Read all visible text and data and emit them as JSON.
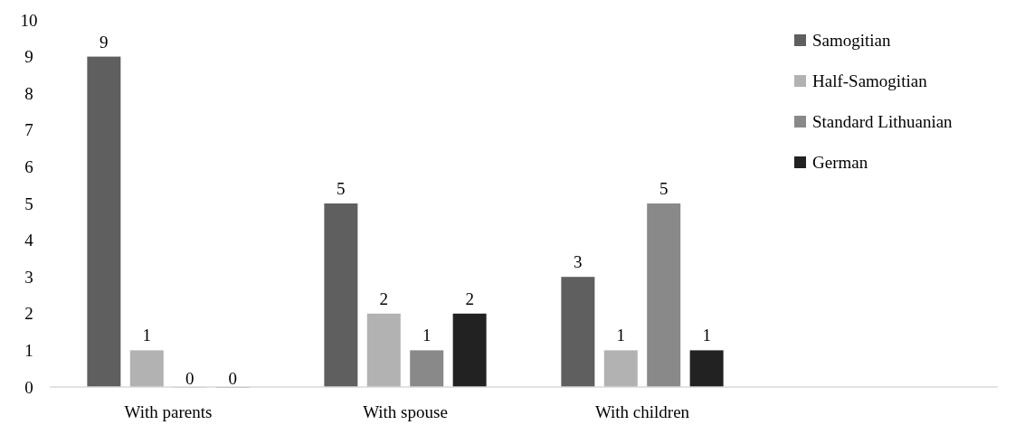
{
  "chart_data": {
    "type": "bar",
    "categories": [
      "With parents",
      "With spouse",
      "With children",
      null
    ],
    "series": [
      {
        "name": "Samogitian",
        "color": "#5f5f5f",
        "values": [
          9,
          5,
          3,
          null
        ]
      },
      {
        "name": "Half-Samogitian",
        "color": "#b2b2b2",
        "values": [
          1,
          2,
          1,
          null
        ]
      },
      {
        "name": "Standard Lithuanian",
        "color": "#898989",
        "values": [
          0,
          1,
          5,
          null
        ]
      },
      {
        "name": "German",
        "color": "#222222",
        "values": [
          0,
          2,
          1,
          null
        ]
      }
    ],
    "ylim": [
      0,
      10
    ],
    "yticks": [
      0,
      1,
      2,
      3,
      4,
      5,
      6,
      7,
      8,
      9,
      10
    ],
    "grid": false,
    "legend": "top right",
    "data_labels": true
  }
}
